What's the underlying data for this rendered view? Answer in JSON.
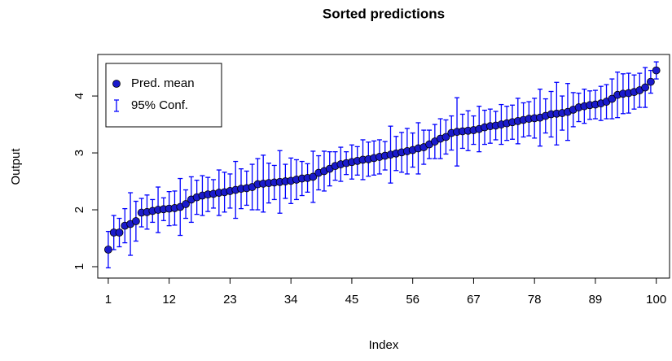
{
  "chart_data": {
    "type": "errorbar",
    "title": "Sorted predictions",
    "xlabel": "Index",
    "ylabel": "Output",
    "x": [
      1,
      2,
      3,
      4,
      5,
      6,
      7,
      8,
      9,
      10,
      11,
      12,
      13,
      14,
      15,
      16,
      17,
      18,
      19,
      20,
      21,
      22,
      23,
      24,
      25,
      26,
      27,
      28,
      29,
      30,
      31,
      32,
      33,
      34,
      35,
      36,
      37,
      38,
      39,
      40,
      41,
      42,
      43,
      44,
      45,
      46,
      47,
      48,
      49,
      50,
      51,
      52,
      53,
      54,
      55,
      56,
      57,
      58,
      59,
      60,
      61,
      62,
      63,
      64,
      65,
      66,
      67,
      68,
      69,
      70,
      71,
      72,
      73,
      74,
      75,
      76,
      77,
      78,
      79,
      80,
      81,
      82,
      83,
      84,
      85,
      86,
      87,
      88,
      89,
      90,
      91,
      92,
      93,
      94,
      95,
      96,
      97,
      98,
      99,
      100
    ],
    "series": [
      {
        "name": "Pred. mean",
        "error_name": "95% Conf.",
        "color": "#0000ff",
        "point_color": "#1a1acc",
        "values": [
          1.3,
          1.6,
          1.6,
          1.72,
          1.75,
          1.8,
          1.95,
          1.96,
          1.98,
          2.0,
          2.01,
          2.02,
          2.03,
          2.05,
          2.1,
          2.18,
          2.22,
          2.25,
          2.27,
          2.28,
          2.3,
          2.31,
          2.33,
          2.35,
          2.37,
          2.38,
          2.4,
          2.45,
          2.46,
          2.47,
          2.48,
          2.49,
          2.5,
          2.51,
          2.53,
          2.55,
          2.56,
          2.58,
          2.65,
          2.68,
          2.72,
          2.77,
          2.8,
          2.82,
          2.84,
          2.86,
          2.88,
          2.89,
          2.91,
          2.93,
          2.95,
          2.97,
          2.99,
          3.01,
          3.03,
          3.05,
          3.08,
          3.1,
          3.15,
          3.2,
          3.25,
          3.28,
          3.35,
          3.37,
          3.38,
          3.39,
          3.4,
          3.42,
          3.45,
          3.47,
          3.48,
          3.5,
          3.52,
          3.54,
          3.56,
          3.58,
          3.6,
          3.61,
          3.62,
          3.65,
          3.68,
          3.69,
          3.7,
          3.72,
          3.76,
          3.8,
          3.82,
          3.84,
          3.85,
          3.87,
          3.9,
          3.95,
          4.02,
          4.04,
          4.05,
          4.07,
          4.1,
          4.15,
          4.25,
          4.45
        ],
        "errors": [
          0.32,
          0.3,
          0.25,
          0.3,
          0.55,
          0.35,
          0.25,
          0.3,
          0.2,
          0.4,
          0.2,
          0.3,
          0.3,
          0.5,
          0.25,
          0.4,
          0.3,
          0.35,
          0.3,
          0.25,
          0.4,
          0.35,
          0.3,
          0.5,
          0.35,
          0.3,
          0.4,
          0.45,
          0.5,
          0.35,
          0.3,
          0.55,
          0.3,
          0.4,
          0.35,
          0.3,
          0.25,
          0.45,
          0.3,
          0.35,
          0.3,
          0.25,
          0.3,
          0.2,
          0.3,
          0.25,
          0.35,
          0.3,
          0.3,
          0.3,
          0.25,
          0.5,
          0.3,
          0.35,
          0.4,
          0.3,
          0.45,
          0.3,
          0.25,
          0.3,
          0.35,
          0.3,
          0.3,
          0.6,
          0.3,
          0.35,
          0.25,
          0.4,
          0.3,
          0.3,
          0.25,
          0.35,
          0.3,
          0.3,
          0.4,
          0.3,
          0.3,
          0.35,
          0.5,
          0.3,
          0.4,
          0.55,
          0.3,
          0.5,
          0.3,
          0.25,
          0.3,
          0.25,
          0.25,
          0.3,
          0.3,
          0.35,
          0.4,
          0.35,
          0.35,
          0.3,
          0.3,
          0.35,
          0.2,
          0.15
        ]
      }
    ],
    "xlim": [
      -0.9,
      102.4
    ],
    "ylim": [
      0.8,
      4.73
    ],
    "xticks": [
      1,
      12,
      23,
      34,
      45,
      56,
      67,
      78,
      89,
      100
    ],
    "yticks": [
      1,
      2,
      3,
      4
    ],
    "legend": "top-left"
  }
}
